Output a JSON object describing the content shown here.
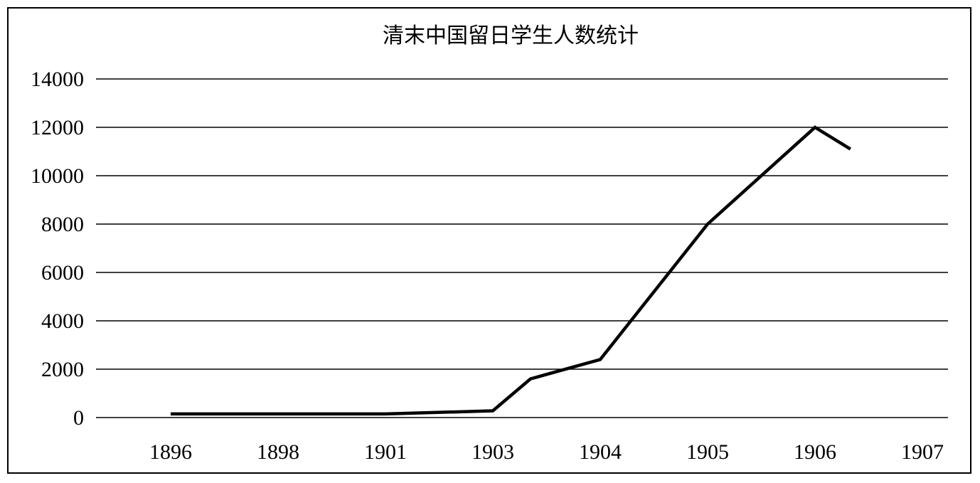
{
  "chart_data": {
    "type": "line",
    "title": "清末中国留日学生人数统计",
    "xlabel": "",
    "ylabel": "",
    "categories": [
      "1896",
      "1898",
      "1901",
      "1903",
      "1904",
      "1905",
      "1906",
      "1907"
    ],
    "x_points": [
      0,
      1,
      2,
      3,
      3.35,
      4,
      5,
      6,
      6.33
    ],
    "y_points": [
      150,
      150,
      150,
      280,
      1600,
      2400,
      8000,
      12000,
      11100
    ],
    "ylim": [
      0,
      14000
    ],
    "yticks": [
      "0",
      "2000",
      "4000",
      "6000",
      "8000",
      "10000",
      "12000",
      "14000"
    ],
    "grid": true,
    "legend": "none",
    "line_color": "#000000"
  }
}
